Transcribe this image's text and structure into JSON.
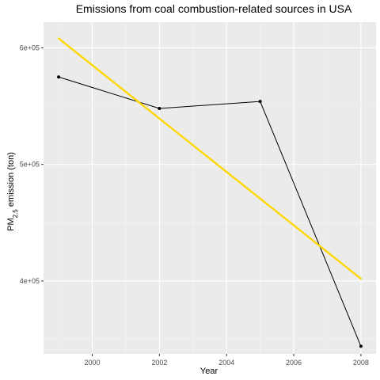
{
  "chart_data": {
    "type": "line",
    "title": "Emissions from coal combustion-related sources in USA",
    "xlabel": "Year",
    "ylabel": {
      "main": "PM",
      "subscript": "2.5",
      "suffix": " emission (ton)"
    },
    "x_ticks": [
      2000,
      2002,
      2004,
      2006,
      2008
    ],
    "y_ticks": [
      {
        "value": 400000,
        "label": "4e+05"
      },
      {
        "value": 500000,
        "label": "5e+05"
      },
      {
        "value": 600000,
        "label": "6e+05"
      }
    ],
    "xlim": [
      1998.55,
      2008.45
    ],
    "ylim": [
      337500,
      622000
    ],
    "grid": true,
    "panel_background": "#ebebeb",
    "series": [
      {
        "type": "line-with-points",
        "color": "#000000",
        "x": [
          1999,
          2002,
          2005,
          2008
        ],
        "y": [
          575000,
          548000,
          554000,
          344000
        ]
      },
      {
        "type": "trend-line",
        "color": "#ffd700",
        "x": [
          1999,
          2008
        ],
        "y": [
          608000,
          402000
        ]
      }
    ]
  }
}
